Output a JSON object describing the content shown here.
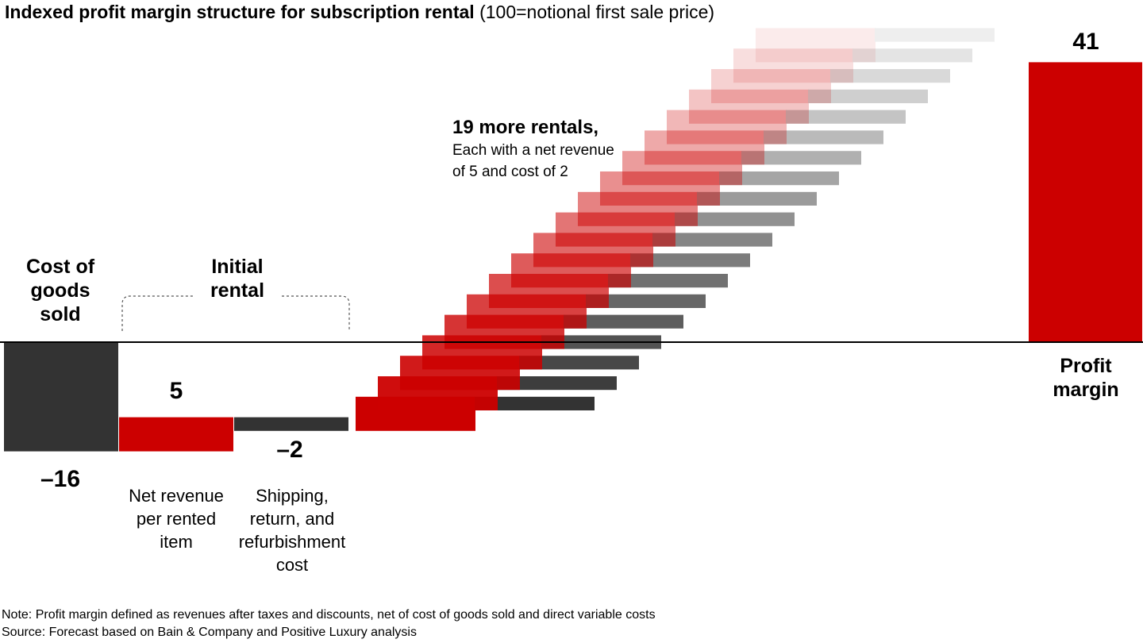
{
  "title": {
    "bold": "Indexed profit margin structure for subscription rental",
    "normal": " (100=notional first sale price)"
  },
  "chart_data": {
    "type": "waterfall",
    "index_base": 100,
    "steps": [
      {
        "name": "Cost of goods sold",
        "value": -16
      },
      {
        "name": "Net revenue per rented item",
        "value": 5
      },
      {
        "name": "Shipping, return, and refurbishment cost",
        "value": -2
      },
      {
        "name": "19 more rentals",
        "count": 19,
        "revenue_each": 5,
        "cost_each": -2
      },
      {
        "name": "Profit margin",
        "value": 41
      }
    ],
    "colors": {
      "cost": "#333333",
      "revenue": "#cc0000",
      "profit": "#cc0000",
      "axis": "#000000"
    }
  },
  "labels": {
    "cogs_header": "Cost of\ngoods\nsold",
    "cogs_value": "–16",
    "initial_rental_header": "Initial\nrental",
    "revenue_value": "5",
    "revenue_label": "Net revenue\nper rented\nitem",
    "shipping_value": "–2",
    "shipping_label": "Shipping,\nreturn, and\nrefurbishment\ncost",
    "profit_value": "41",
    "profit_label": "Profit\nmargin"
  },
  "annotation": {
    "heading": "19 more rentals,",
    "text": "Each with a net revenue\nof 5 and cost of 2"
  },
  "notes": {
    "note": "Note: Profit margin defined as revenues after taxes and discounts, net of cost of goods sold and direct variable costs",
    "source": "Source: Forecast based on Bain & Company and Positive Luxury analysis"
  }
}
